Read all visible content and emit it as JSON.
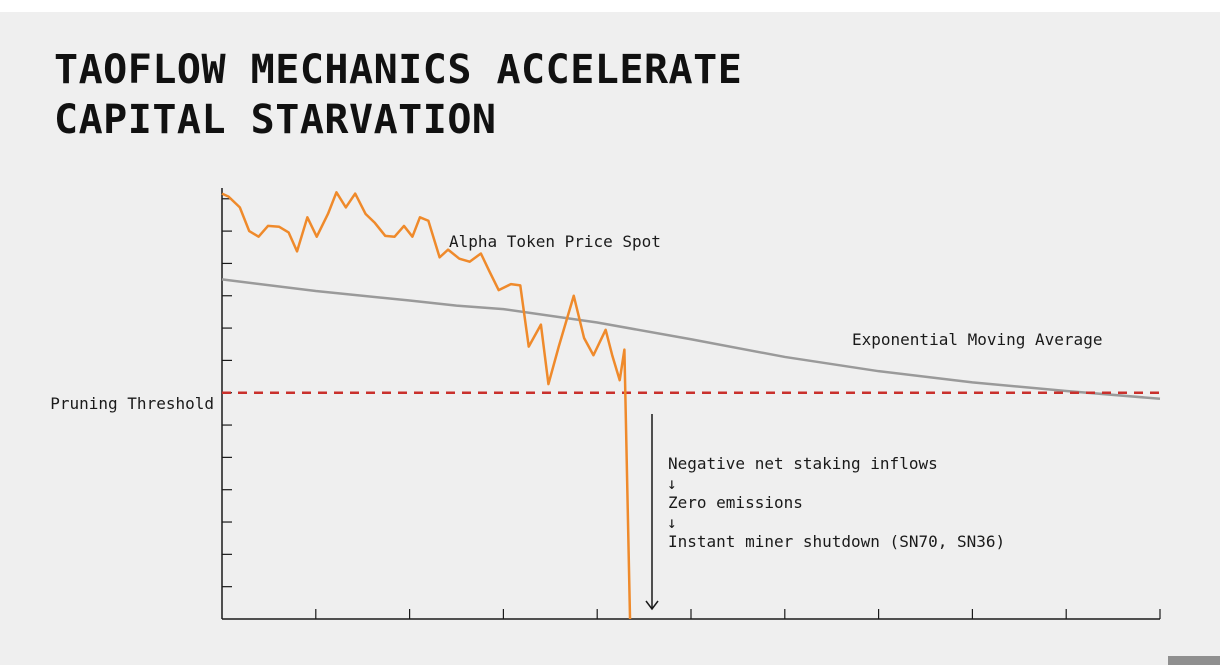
{
  "title": {
    "line1": "TAOFLOW MECHANICS ACCELERATE",
    "line2": "CAPITAL STARVATION"
  },
  "colors": {
    "price": "#ef8a2b",
    "ema": "#9a9a9a",
    "threshold": "#c9302c",
    "axis": "#1a1a1a",
    "text": "#1a1a1a"
  },
  "chart_data": {
    "type": "line",
    "title": "TAOFLOW MECHANICS ACCELERATE CAPITAL STARVATION",
    "xlabel": "",
    "ylabel": "",
    "xlim": [
      0,
      100
    ],
    "ylim": [
      0,
      100
    ],
    "grid": false,
    "x_ticks": [
      0,
      10,
      20,
      30,
      40,
      50,
      60,
      70,
      80,
      90,
      100
    ],
    "y_ticks": [
      0,
      7.5,
      15,
      22.5,
      30,
      37.5,
      45,
      52.5,
      60,
      67.5,
      75,
      82.5,
      90,
      97.5
    ],
    "series": [
      {
        "name": "Alpha Token Price Spot",
        "x": [
          0,
          0.7,
          1.9,
          2.9,
          3.9,
          4.9,
          6.1,
          7.1,
          8.0,
          9.1,
          10.1,
          11.3,
          12.2,
          13.2,
          14.2,
          15.3,
          16.3,
          17.4,
          18.4,
          19.4,
          20.3,
          21.1,
          22.0,
          23.2,
          24.1,
          25.3,
          26.4,
          27.6,
          28.5,
          29.5,
          30.8,
          31.8,
          32.7,
          34.0,
          34.8,
          35.9,
          37.5,
          38.6,
          39.6,
          40.9,
          41.6,
          42.4,
          42.9,
          43.5
        ],
        "values": [
          98.7,
          98.0,
          95.5,
          90.0,
          88.7,
          91.2,
          91.0,
          89.7,
          85.3,
          93.2,
          88.7,
          94.0,
          99.0,
          95.5,
          98.7,
          94.0,
          91.9,
          88.9,
          88.7,
          91.2,
          88.7,
          93.2,
          92.4,
          83.9,
          85.7,
          83.6,
          82.9,
          84.8,
          80.7,
          76.3,
          77.7,
          77.4,
          63.2,
          68.3,
          54.5,
          63.2,
          75.0,
          65.2,
          61.2,
          67.1,
          61.2,
          55.4,
          62.5,
          0
        ]
      },
      {
        "name": "Exponential Moving Average",
        "x": [
          0,
          10,
          20,
          25,
          30,
          40,
          50,
          60,
          70,
          80,
          90,
          100
        ],
        "values": [
          78.8,
          76.1,
          73.9,
          72.7,
          71.9,
          68.8,
          64.9,
          60.8,
          57.5,
          54.9,
          52.9,
          51.1
        ]
      }
    ],
    "threshold": {
      "label": "Pruning Threshold",
      "value": 52.5
    },
    "annotations": {
      "price_label": "Alpha Token Price Spot",
      "ema_label": "Exponential Moving Average",
      "steps": [
        "Negative net staking inflows",
        "Zero emissions",
        "Instant miner shutdown (SN70, SN36)"
      ],
      "step_arrow": "↓"
    }
  }
}
